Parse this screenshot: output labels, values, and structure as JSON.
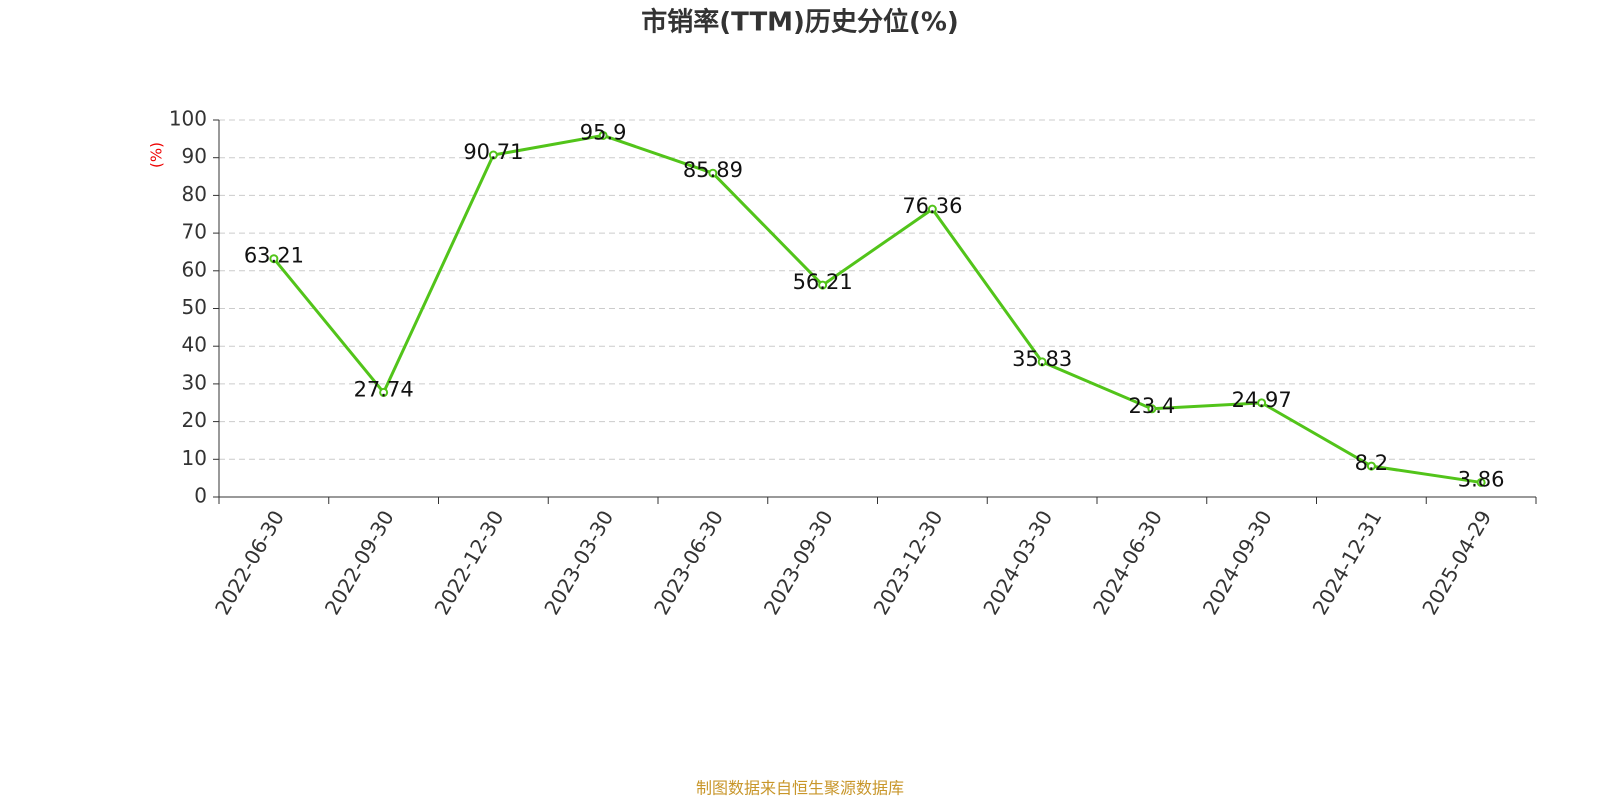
{
  "chart_data": {
    "type": "line",
    "title": "市销率(TTM)历史分位(%)",
    "y_label": "(%)",
    "source": "制图数据来自恒生聚源数据库",
    "categories": [
      "2022-06-30",
      "2022-09-30",
      "2022-12-30",
      "2023-03-30",
      "2023-06-30",
      "2023-09-30",
      "2023-12-30",
      "2024-03-30",
      "2024-06-30",
      "2024-09-30",
      "2024-12-31",
      "2025-04-29"
    ],
    "series": [
      {
        "name": "市销率(TTM)历史分位",
        "color": "#52c41a",
        "values": [
          63.21,
          27.74,
          90.71,
          95.9,
          85.89,
          56.21,
          76.36,
          35.83,
          23.4,
          24.97,
          8.2,
          3.86
        ]
      }
    ],
    "ylim": [
      0,
      100
    ],
    "yticks": [
      0,
      10,
      20,
      30,
      40,
      50,
      60,
      70,
      80,
      90,
      100
    ],
    "grid": true
  }
}
